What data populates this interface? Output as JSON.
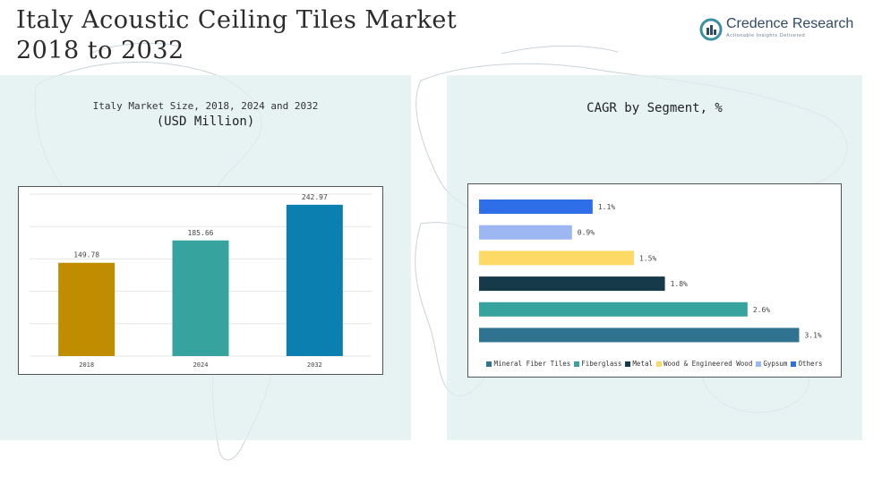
{
  "header": {
    "title_line1": "Italy Acoustic Ceiling Tiles Market",
    "title_line2": "2018 to 2032"
  },
  "logo": {
    "name": "Credence Research",
    "tagline": "Actionable Insights Delivered"
  },
  "left_panel": {
    "subtitle": "Italy Market Size, 2018, 2024 and 2032",
    "unit": "(USD Million)"
  },
  "right_panel": {
    "title": "CAGR by Segment, %"
  },
  "colors": {
    "panel_bg": "#e0eef0",
    "bar_2018": "#c08d00",
    "bar_2024": "#36a39f",
    "bar_2032": "#0b7fb0",
    "mineral_fiber": "#2f7390",
    "fiberglass": "#36a39f",
    "metal": "#163a4a",
    "wood": "#ffd966",
    "gypsum": "#9db7f2",
    "others": "#2e6fe9"
  },
  "chart_data": [
    {
      "type": "bar",
      "categories": [
        "2018",
        "2024",
        "2032"
      ],
      "values": [
        149.78,
        185.66,
        242.97
      ],
      "value_labels": [
        "149.78",
        "185.66",
        "242.97"
      ],
      "title": "Italy Market Size, 2018, 2024 and 2032",
      "ylabel": "(USD Million)",
      "ylim": [
        0,
        260
      ],
      "grid": true,
      "colors": [
        "#c08d00",
        "#36a39f",
        "#0b7fb0"
      ]
    },
    {
      "type": "bar",
      "orientation": "horizontal",
      "title": "CAGR by Segment, %",
      "categories": [
        "Others",
        "Gypsum",
        "Wood & Engineered Wood",
        "Metal",
        "Fiberglass",
        "Mineral Fiber Tiles"
      ],
      "values": [
        1.1,
        0.9,
        1.5,
        1.8,
        2.6,
        3.1
      ],
      "value_labels": [
        "1.1%",
        "0.9%",
        "1.5%",
        "1.8%",
        "2.6%",
        "3.1%"
      ],
      "colors": [
        "#2e6fe9",
        "#9db7f2",
        "#ffd966",
        "#163a4a",
        "#36a39f",
        "#2f7390"
      ],
      "xlim": [
        0,
        3.2
      ],
      "legend": [
        {
          "label": "Mineral Fiber Tiles",
          "color": "#2f7390"
        },
        {
          "label": "Fiberglass",
          "color": "#36a39f"
        },
        {
          "label": "Metal",
          "color": "#163a4a"
        },
        {
          "label": "Wood & Engineered Wood",
          "color": "#ffd966"
        },
        {
          "label": "Gypsum",
          "color": "#9db7f2"
        },
        {
          "label": "Others",
          "color": "#2e6fe9"
        }
      ],
      "legend_position": "bottom"
    }
  ]
}
